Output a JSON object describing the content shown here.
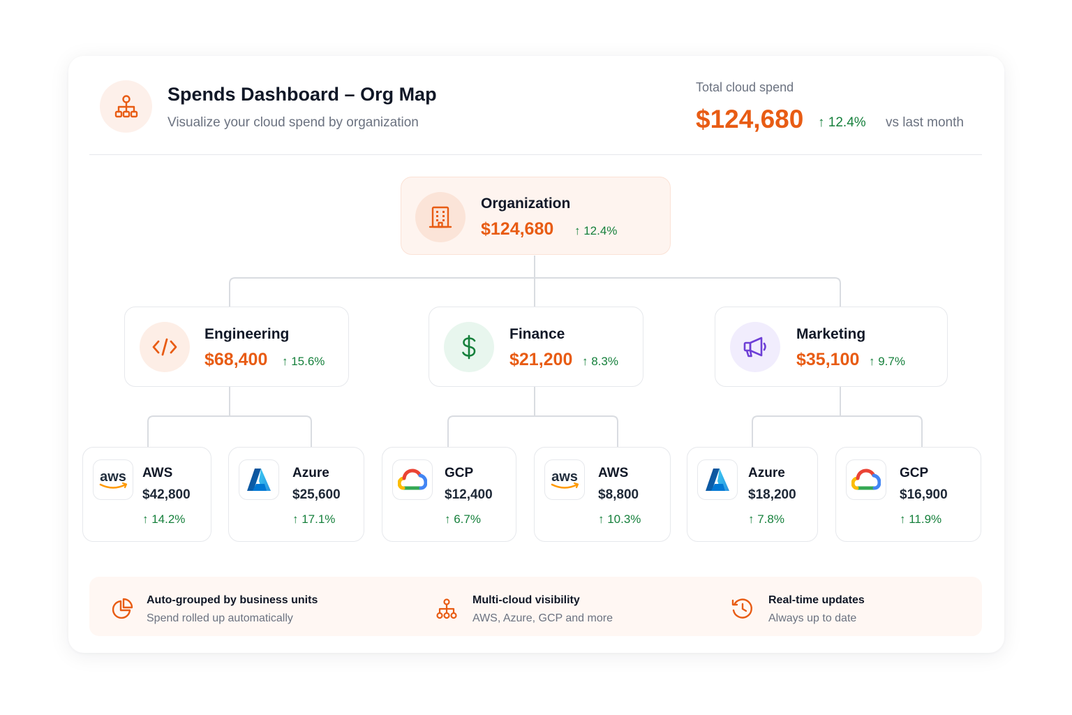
{
  "header": {
    "title": "Spends Dashboard – Org Map",
    "subtitle": "Visualize your cloud spend by organization",
    "total_label": "Total cloud spend",
    "total_value": "$124,680",
    "total_change": "↑ 12.4%",
    "total_compare": "vs last month"
  },
  "org": {
    "name": "Organization",
    "value": "$124,680",
    "change": "↑ 12.4%",
    "icon": "building-icon"
  },
  "departments": [
    {
      "name": "Engineering",
      "value": "$68,400",
      "change": "↑ 15.6%",
      "icon": "code-icon",
      "providers": [
        {
          "name": "AWS",
          "amount": "$42,800",
          "change": "↑ 14.2%",
          "logo": "aws-logo"
        },
        {
          "name": "Azure",
          "amount": "$25,600",
          "change": "↑ 17.1%",
          "logo": "azure-logo"
        }
      ]
    },
    {
      "name": "Finance",
      "value": "$21,200",
      "change": "↑ 8.3%",
      "icon": "dollar-icon",
      "providers": [
        {
          "name": "GCP",
          "amount": "$12,400",
          "change": "↑ 6.7%",
          "logo": "gcp-logo"
        },
        {
          "name": "AWS",
          "amount": "$8,800",
          "change": "↑ 10.3%",
          "logo": "aws-logo"
        }
      ]
    },
    {
      "name": "Marketing",
      "value": "$35,100",
      "change": "↑ 9.7%",
      "icon": "megaphone-icon",
      "providers": [
        {
          "name": "Azure",
          "amount": "$18,200",
          "change": "↑ 7.8%",
          "logo": "azure-logo"
        },
        {
          "name": "GCP",
          "amount": "$16,900",
          "change": "↑ 11.9%",
          "logo": "gcp-logo"
        }
      ]
    }
  ],
  "features": [
    {
      "title": "Auto-grouped by business units",
      "subtitle": "Spend rolled up automatically",
      "icon": "pie-chart-icon"
    },
    {
      "title": "Multi-cloud visibility",
      "subtitle": "AWS, Azure, GCP and more",
      "icon": "hierarchy-icon"
    },
    {
      "title": "Real-time updates",
      "subtitle": "Always up to date",
      "icon": "history-clock-icon"
    }
  ],
  "colors": {
    "accent": "#e85c14",
    "positive": "#16803c",
    "muted": "#6b7280",
    "finance_tint": "#e8f6ee",
    "marketing_tint": "#f1edfd"
  }
}
